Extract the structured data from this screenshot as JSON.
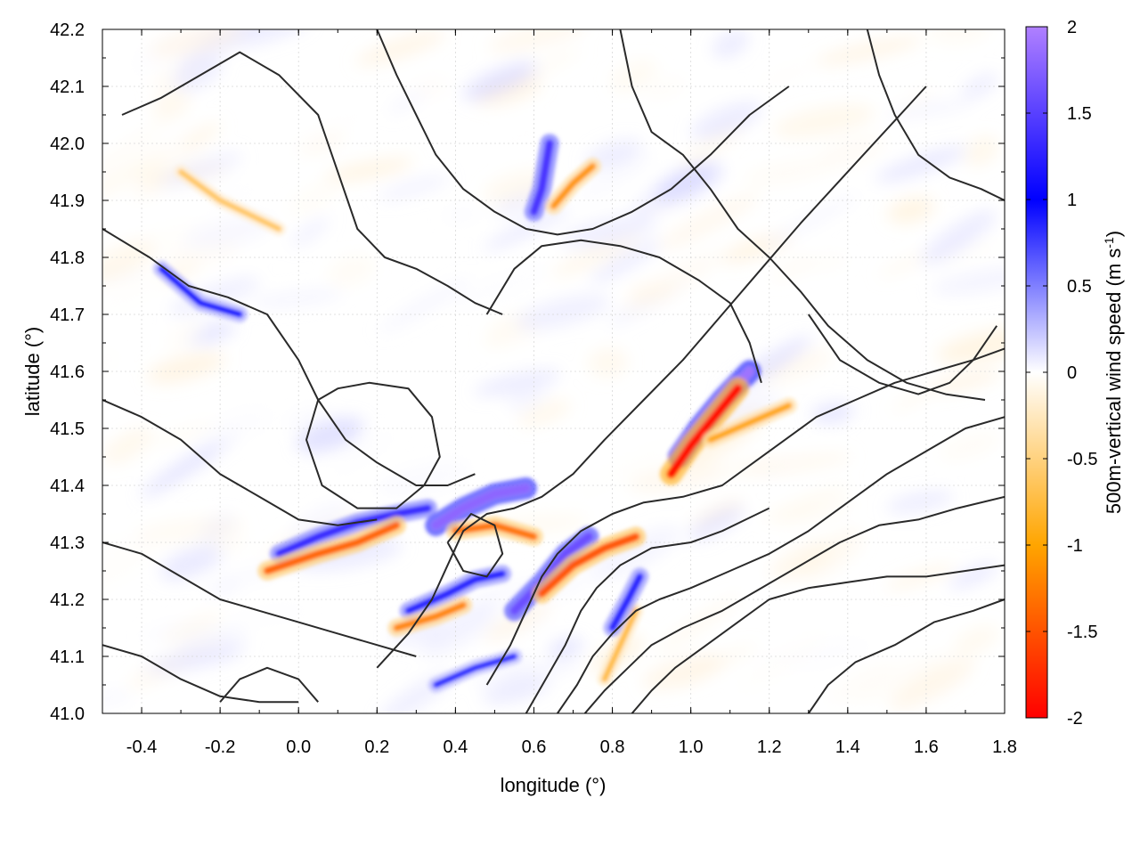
{
  "chart_data": {
    "type": "heatmap",
    "title": "",
    "xlabel": "longitude (°)",
    "ylabel": "latitude (°)",
    "xlim": [
      -0.5,
      1.8
    ],
    "ylim": [
      41.0,
      42.2
    ],
    "xticks": [
      -0.4,
      -0.2,
      0.0,
      0.2,
      0.4,
      0.6,
      0.8,
      1.0,
      1.2,
      1.4,
      1.6,
      1.8
    ],
    "xtick_labels": [
      "-0.4",
      "-0.2",
      "0.0",
      "0.2",
      "0.4",
      "0.6",
      "0.8",
      "1.0",
      "1.2",
      "1.4",
      "1.6",
      "1.8"
    ],
    "yticks": [
      41.0,
      41.1,
      41.2,
      41.3,
      41.4,
      41.5,
      41.6,
      41.7,
      41.8,
      41.9,
      42.0,
      42.1,
      42.2
    ],
    "ytick_labels": [
      "41.0",
      "41.1",
      "41.2",
      "41.3",
      "41.4",
      "41.5",
      "41.6",
      "41.7",
      "41.8",
      "41.9",
      "42.0",
      "42.1",
      "42.2"
    ],
    "grid": true,
    "colorbar": {
      "label_prefix": "500m-vertical wind speed (m s",
      "label_sup": "-1",
      "label_suffix": ")",
      "range": [
        -2,
        2
      ],
      "ticks": [
        -2,
        -1.5,
        -1,
        -0.5,
        0,
        0.5,
        1,
        1.5,
        2
      ],
      "tick_labels": [
        "-2",
        "-1.5",
        "-1",
        "-0.5",
        "0",
        "0.5",
        "1",
        "1.5",
        "2"
      ],
      "colors": {
        "neg_max": "#ff0000",
        "neg_mid": "#ffa500",
        "neg_low": "#fff0d8",
        "zero": "#ffffff",
        "pos_low": "#d8d8ff",
        "pos_mid": "#0000ff",
        "pos_max": "#b080ff"
      }
    },
    "features": [
      {
        "name": "updraft-band-1",
        "value": 1.3,
        "points": [
          [
            -0.05,
            41.28
          ],
          [
            0.05,
            41.31
          ],
          [
            0.15,
            41.335
          ],
          [
            0.25,
            41.35
          ],
          [
            0.33,
            41.36
          ]
        ]
      },
      {
        "name": "downdraft-band-1",
        "value": -1.4,
        "points": [
          [
            -0.08,
            41.25
          ],
          [
            0.05,
            41.28
          ],
          [
            0.15,
            41.3
          ],
          [
            0.25,
            41.33
          ]
        ]
      },
      {
        "name": "updraft-band-2",
        "value": 1.8,
        "points": [
          [
            0.35,
            41.33
          ],
          [
            0.42,
            41.36
          ],
          [
            0.5,
            41.385
          ],
          [
            0.58,
            41.395
          ]
        ]
      },
      {
        "name": "downdraft-band-2",
        "value": -1.3,
        "points": [
          [
            0.4,
            41.32
          ],
          [
            0.5,
            41.33
          ],
          [
            0.6,
            41.31
          ]
        ]
      },
      {
        "name": "updraft-band-3",
        "value": 1.2,
        "points": [
          [
            0.28,
            41.18
          ],
          [
            0.38,
            41.21
          ],
          [
            0.45,
            41.235
          ],
          [
            0.52,
            41.245
          ]
        ]
      },
      {
        "name": "downdraft-band-3",
        "value": -1.2,
        "points": [
          [
            0.25,
            41.15
          ],
          [
            0.35,
            41.17
          ],
          [
            0.42,
            41.19
          ]
        ]
      },
      {
        "name": "updraft-band-4",
        "value": 1.6,
        "points": [
          [
            0.55,
            41.18
          ],
          [
            0.62,
            41.23
          ],
          [
            0.68,
            41.28
          ],
          [
            0.74,
            41.31
          ]
        ]
      },
      {
        "name": "downdraft-band-4",
        "value": -1.5,
        "points": [
          [
            0.62,
            41.21
          ],
          [
            0.7,
            41.26
          ],
          [
            0.78,
            41.29
          ],
          [
            0.86,
            41.31
          ]
        ]
      },
      {
        "name": "updraft-band-5",
        "value": 1.9,
        "points": [
          [
            0.97,
            41.45
          ],
          [
            1.02,
            41.5
          ],
          [
            1.08,
            41.55
          ],
          [
            1.15,
            41.6
          ]
        ]
      },
      {
        "name": "downdraft-band-5",
        "value": -1.9,
        "points": [
          [
            0.95,
            41.42
          ],
          [
            1.0,
            41.47
          ],
          [
            1.06,
            41.52
          ],
          [
            1.12,
            41.57
          ]
        ]
      },
      {
        "name": "downdraft-band-6",
        "value": -1.0,
        "points": [
          [
            1.05,
            41.48
          ],
          [
            1.15,
            41.51
          ],
          [
            1.25,
            41.54
          ]
        ]
      },
      {
        "name": "updraft-band-6",
        "value": 1.4,
        "points": [
          [
            0.6,
            41.88
          ],
          [
            0.62,
            41.92
          ],
          [
            0.63,
            41.96
          ],
          [
            0.64,
            42.0
          ]
        ]
      },
      {
        "name": "downdraft-band-7",
        "value": -1.1,
        "points": [
          [
            0.65,
            41.89
          ],
          [
            0.7,
            41.93
          ],
          [
            0.75,
            41.96
          ]
        ]
      },
      {
        "name": "updraft-band-7",
        "value": 1.0,
        "points": [
          [
            -0.35,
            41.78
          ],
          [
            -0.25,
            41.72
          ],
          [
            -0.15,
            41.7
          ]
        ]
      },
      {
        "name": "downdraft-band-8",
        "value": -0.8,
        "points": [
          [
            0.78,
            41.06
          ],
          [
            0.82,
            41.12
          ],
          [
            0.86,
            41.18
          ]
        ]
      },
      {
        "name": "updraft-band-8",
        "value": 1.2,
        "points": [
          [
            0.8,
            41.15
          ],
          [
            0.84,
            41.2
          ],
          [
            0.87,
            41.24
          ]
        ]
      },
      {
        "name": "downdraft-band-9",
        "value": -0.7,
        "points": [
          [
            -0.3,
            41.95
          ],
          [
            -0.2,
            41.9
          ],
          [
            -0.05,
            41.85
          ]
        ]
      },
      {
        "name": "updraft-band-9",
        "value": 0.9,
        "points": [
          [
            0.35,
            41.05
          ],
          [
            0.45,
            41.08
          ],
          [
            0.55,
            41.1
          ]
        ]
      }
    ],
    "contours": [
      [
        [
          -0.5,
          41.85
        ],
        [
          -0.38,
          41.8
        ],
        [
          -0.28,
          41.75
        ],
        [
          -0.18,
          41.73
        ],
        [
          -0.08,
          41.7
        ],
        [
          0.0,
          41.62
        ],
        [
          0.05,
          41.55
        ],
        [
          0.12,
          41.48
        ],
        [
          0.2,
          41.44
        ],
        [
          0.3,
          41.4
        ],
        [
          0.38,
          41.4
        ],
        [
          0.45,
          41.42
        ]
      ],
      [
        [
          -0.5,
          41.55
        ],
        [
          -0.4,
          41.52
        ],
        [
          -0.3,
          41.48
        ],
        [
          -0.2,
          41.42
        ],
        [
          -0.1,
          41.38
        ],
        [
          0.0,
          41.34
        ],
        [
          0.1,
          41.33
        ],
        [
          0.2,
          41.34
        ]
      ],
      [
        [
          -0.5,
          41.3
        ],
        [
          -0.4,
          41.28
        ],
        [
          -0.3,
          41.24
        ],
        [
          -0.2,
          41.2
        ],
        [
          -0.1,
          41.18
        ],
        [
          0.0,
          41.16
        ],
        [
          0.1,
          41.14
        ],
        [
          0.2,
          41.12
        ],
        [
          0.3,
          41.1
        ]
      ],
      [
        [
          -0.5,
          41.12
        ],
        [
          -0.4,
          41.1
        ],
        [
          -0.3,
          41.06
        ],
        [
          -0.2,
          41.03
        ],
        [
          -0.1,
          41.02
        ],
        [
          0.0,
          41.02
        ]
      ],
      [
        [
          -0.45,
          42.05
        ],
        [
          -0.35,
          42.08
        ],
        [
          -0.25,
          42.12
        ],
        [
          -0.15,
          42.16
        ],
        [
          -0.05,
          42.12
        ],
        [
          0.05,
          42.05
        ],
        [
          0.1,
          41.95
        ],
        [
          0.15,
          41.85
        ],
        [
          0.22,
          41.8
        ],
        [
          0.3,
          41.78
        ],
        [
          0.38,
          41.75
        ],
        [
          0.45,
          41.72
        ],
        [
          0.52,
          41.7
        ]
      ],
      [
        [
          0.2,
          42.2
        ],
        [
          0.25,
          42.12
        ],
        [
          0.3,
          42.05
        ],
        [
          0.35,
          41.98
        ],
        [
          0.42,
          41.92
        ],
        [
          0.5,
          41.88
        ],
        [
          0.58,
          41.85
        ],
        [
          0.66,
          41.84
        ],
        [
          0.75,
          41.85
        ],
        [
          0.85,
          41.88
        ],
        [
          0.95,
          41.92
        ],
        [
          1.05,
          41.98
        ],
        [
          1.15,
          42.05
        ],
        [
          1.25,
          42.1
        ]
      ],
      [
        [
          0.82,
          42.2
        ],
        [
          0.85,
          42.1
        ],
        [
          0.9,
          42.02
        ],
        [
          0.98,
          41.98
        ],
        [
          1.05,
          41.92
        ],
        [
          1.12,
          41.85
        ],
        [
          1.2,
          41.8
        ],
        [
          1.28,
          41.74
        ],
        [
          1.35,
          41.68
        ],
        [
          1.45,
          41.62
        ],
        [
          1.55,
          41.58
        ],
        [
          1.65,
          41.56
        ],
        [
          1.75,
          41.55
        ]
      ],
      [
        [
          0.2,
          41.08
        ],
        [
          0.28,
          41.14
        ],
        [
          0.34,
          41.2
        ],
        [
          0.38,
          41.26
        ],
        [
          0.42,
          41.32
        ],
        [
          0.48,
          41.35
        ],
        [
          0.55,
          41.36
        ],
        [
          0.62,
          41.38
        ],
        [
          0.7,
          41.42
        ],
        [
          0.78,
          41.48
        ],
        [
          0.88,
          41.55
        ],
        [
          0.98,
          41.62
        ],
        [
          1.08,
          41.7
        ],
        [
          1.18,
          41.78
        ],
        [
          1.28,
          41.86
        ],
        [
          1.36,
          41.92
        ],
        [
          1.44,
          41.98
        ],
        [
          1.52,
          42.04
        ],
        [
          1.6,
          42.1
        ]
      ],
      [
        [
          0.48,
          41.05
        ],
        [
          0.54,
          41.12
        ],
        [
          0.58,
          41.18
        ],
        [
          0.62,
          41.24
        ],
        [
          0.66,
          41.28
        ],
        [
          0.72,
          41.32
        ],
        [
          0.8,
          41.35
        ],
        [
          0.88,
          41.37
        ],
        [
          0.98,
          41.38
        ],
        [
          1.08,
          41.4
        ],
        [
          1.16,
          41.44
        ],
        [
          1.24,
          41.48
        ],
        [
          1.32,
          41.52
        ],
        [
          1.42,
          41.55
        ],
        [
          1.52,
          41.58
        ],
        [
          1.62,
          41.6
        ],
        [
          1.72,
          41.62
        ],
        [
          1.8,
          41.64
        ]
      ],
      [
        [
          0.58,
          41.0
        ],
        [
          0.63,
          41.06
        ],
        [
          0.68,
          41.12
        ],
        [
          0.72,
          41.18
        ],
        [
          0.76,
          41.22
        ],
        [
          0.82,
          41.26
        ],
        [
          0.9,
          41.29
        ],
        [
          1.0,
          41.3
        ],
        [
          1.08,
          41.32
        ],
        [
          1.14,
          41.34
        ],
        [
          1.2,
          41.36
        ]
      ],
      [
        [
          0.66,
          41.0
        ],
        [
          0.71,
          41.05
        ],
        [
          0.75,
          41.1
        ],
        [
          0.8,
          41.14
        ],
        [
          0.86,
          41.18
        ],
        [
          0.92,
          41.2
        ],
        [
          1.0,
          41.22
        ],
        [
          1.1,
          41.25
        ],
        [
          1.2,
          41.28
        ],
        [
          1.3,
          41.32
        ],
        [
          1.4,
          41.37
        ],
        [
          1.5,
          41.42
        ],
        [
          1.6,
          41.46
        ],
        [
          1.7,
          41.5
        ],
        [
          1.8,
          41.52
        ]
      ],
      [
        [
          0.73,
          41.0
        ],
        [
          0.78,
          41.04
        ],
        [
          0.84,
          41.08
        ],
        [
          0.9,
          41.12
        ],
        [
          0.98,
          41.15
        ],
        [
          1.08,
          41.18
        ],
        [
          1.18,
          41.22
        ],
        [
          1.28,
          41.26
        ],
        [
          1.38,
          41.3
        ],
        [
          1.48,
          41.33
        ],
        [
          1.58,
          41.34
        ],
        [
          1.68,
          41.36
        ],
        [
          1.8,
          41.38
        ]
      ],
      [
        [
          0.85,
          41.0
        ],
        [
          0.9,
          41.04
        ],
        [
          0.96,
          41.08
        ],
        [
          1.04,
          41.12
        ],
        [
          1.12,
          41.16
        ],
        [
          1.2,
          41.2
        ],
        [
          1.3,
          41.22
        ],
        [
          1.4,
          41.23
        ],
        [
          1.5,
          41.24
        ],
        [
          1.6,
          41.24
        ],
        [
          1.7,
          41.25
        ],
        [
          1.8,
          41.26
        ]
      ],
      [
        [
          1.3,
          41.0
        ],
        [
          1.35,
          41.05
        ],
        [
          1.42,
          41.09
        ],
        [
          1.52,
          41.12
        ],
        [
          1.62,
          41.16
        ],
        [
          1.72,
          41.18
        ],
        [
          1.8,
          41.2
        ]
      ],
      [
        [
          0.48,
          41.7
        ],
        [
          0.55,
          41.78
        ],
        [
          0.62,
          41.82
        ],
        [
          0.72,
          41.83
        ],
        [
          0.82,
          41.82
        ],
        [
          0.92,
          41.8
        ],
        [
          1.02,
          41.76
        ],
        [
          1.1,
          41.72
        ],
        [
          1.15,
          41.65
        ],
        [
          1.18,
          41.58
        ]
      ],
      [
        [
          0.05,
          41.55
        ],
        [
          0.02,
          41.48
        ],
        [
          0.06,
          41.4
        ],
        [
          0.15,
          41.36
        ],
        [
          0.25,
          41.36
        ],
        [
          0.32,
          41.4
        ],
        [
          0.36,
          41.45
        ],
        [
          0.34,
          41.52
        ],
        [
          0.28,
          41.57
        ],
        [
          0.18,
          41.58
        ],
        [
          0.1,
          41.57
        ],
        [
          0.05,
          41.55
        ]
      ],
      [
        [
          0.38,
          41.3
        ],
        [
          0.42,
          41.25
        ],
        [
          0.48,
          41.24
        ],
        [
          0.52,
          41.28
        ],
        [
          0.5,
          41.33
        ],
        [
          0.44,
          41.35
        ],
        [
          0.38,
          41.3
        ]
      ],
      [
        [
          1.3,
          41.7
        ],
        [
          1.38,
          41.62
        ],
        [
          1.48,
          41.58
        ],
        [
          1.58,
          41.56
        ],
        [
          1.66,
          41.58
        ],
        [
          1.72,
          41.62
        ],
        [
          1.78,
          41.68
        ]
      ],
      [
        [
          -0.2,
          41.02
        ],
        [
          -0.15,
          41.06
        ],
        [
          -0.08,
          41.08
        ],
        [
          0.0,
          41.06
        ],
        [
          0.05,
          41.02
        ]
      ],
      [
        [
          1.45,
          42.2
        ],
        [
          1.48,
          42.12
        ],
        [
          1.52,
          42.05
        ],
        [
          1.58,
          41.98
        ],
        [
          1.66,
          41.94
        ],
        [
          1.74,
          41.92
        ],
        [
          1.8,
          41.9
        ]
      ]
    ]
  }
}
